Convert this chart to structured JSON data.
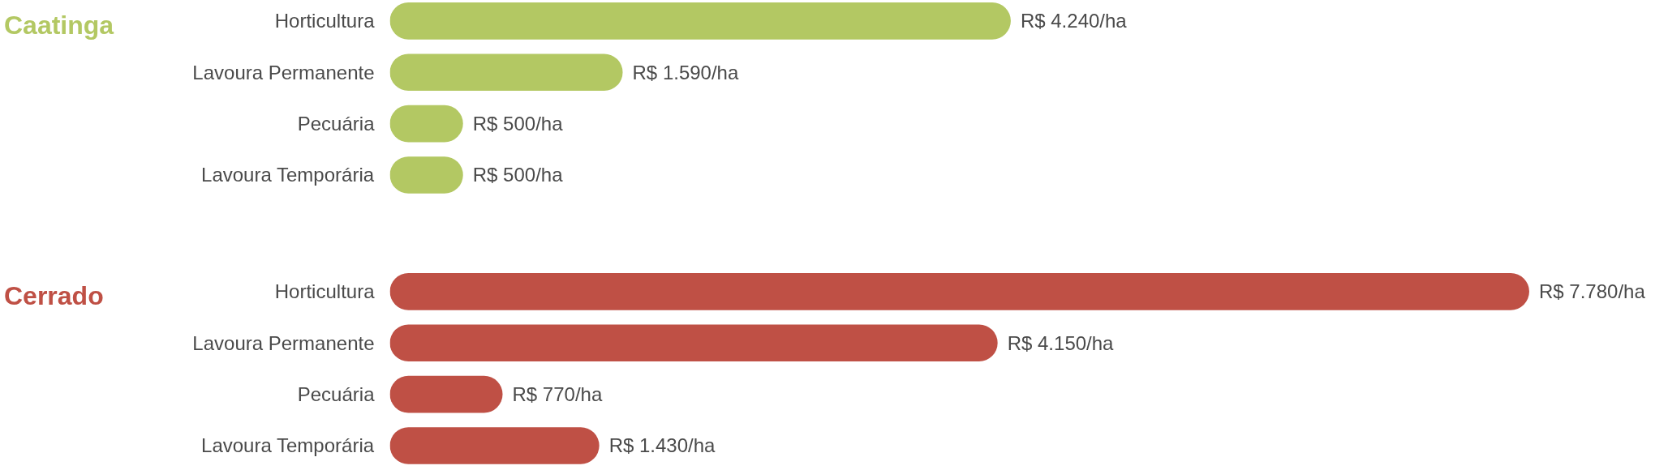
{
  "chart_data": [
    {
      "type": "bar",
      "orientation": "horizontal",
      "title": "Caatinga",
      "categories": [
        "Horticultura",
        "Lavoura Permanente",
        "Pecuária",
        "Lavoura Temporária"
      ],
      "values": [
        4240,
        1590,
        500,
        500
      ],
      "color": "#b3c863",
      "value_labels": [
        "R$ 4.240/ha",
        "R$ 1.590/ha",
        "R$ 500/ha",
        "R$ 500/ha"
      ],
      "tick_labels": "y"
    },
    {
      "type": "bar",
      "orientation": "horizontal",
      "title": "Cerrado",
      "categories": [
        "Horticultura",
        "Lavoura Permanente",
        "Pecuária",
        "Lavoura Temporária"
      ],
      "values": [
        7780,
        4150,
        770,
        1430
      ],
      "color": "#bf5045",
      "value_labels": [
        "R$ 7.780/ha",
        "R$ 4.150/ha",
        "R$ 770/ha",
        "R$ 1.430/ha"
      ],
      "tick_labels": "y"
    }
  ]
}
